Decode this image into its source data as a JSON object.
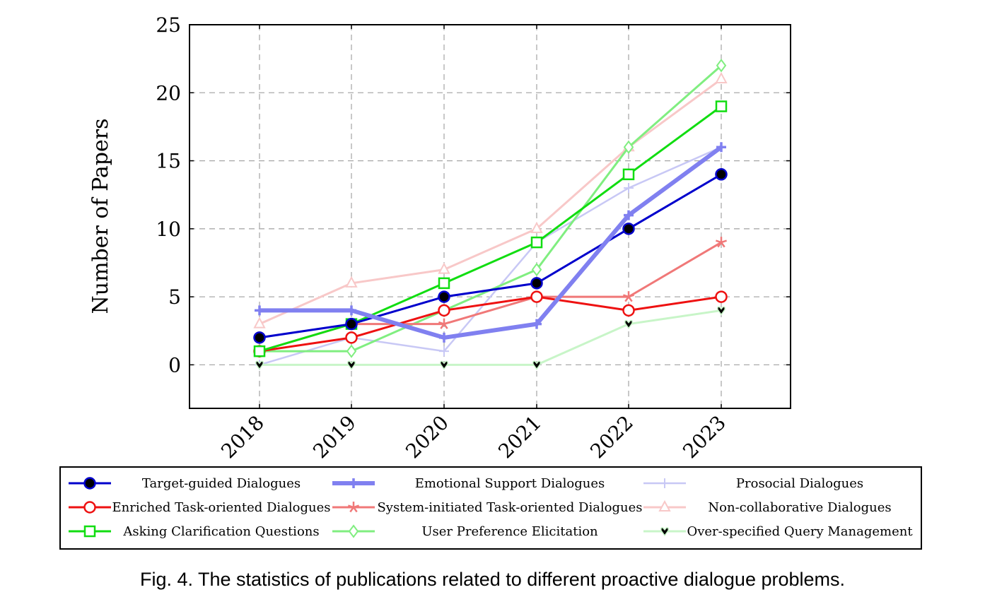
{
  "caption": "Fig. 4.  The statistics of publications related to different proactive dialogue problems.",
  "chart_data": {
    "type": "line",
    "title": "",
    "xlabel": "",
    "ylabel": "Number of Papers",
    "x": [
      "2018",
      "2019",
      "2020",
      "2021",
      "2022",
      "2023"
    ],
    "yticks": [
      "0",
      "5",
      "10",
      "15",
      "20",
      "25"
    ],
    "ylim": [
      -3.2,
      25
    ],
    "grid": true,
    "legend_position": "below",
    "series": [
      {
        "name": "Target-guided Dialogues",
        "values": [
          2,
          3,
          5,
          6,
          10,
          14
        ],
        "color": "#0000cc",
        "marker": "filled-circle",
        "width": 3
      },
      {
        "name": "Emotional Support Dialogues",
        "values": [
          4,
          4,
          2,
          3,
          11,
          16
        ],
        "color": "#8080f0",
        "marker": "plus",
        "width": 6
      },
      {
        "name": "Prosocial Dialogues",
        "values": [
          0,
          2,
          1,
          9,
          13,
          16
        ],
        "color": "#c8c8f5",
        "marker": "plus-thin",
        "width": 2.5
      },
      {
        "name": "Enriched Task-oriented Dialogues",
        "values": [
          1,
          2,
          4,
          5,
          4,
          5
        ],
        "color": "#ee1111",
        "marker": "open-circle",
        "width": 3
      },
      {
        "name": "System-initiated Task-oriented Dialogues",
        "values": [
          1,
          3,
          3,
          5,
          5,
          9
        ],
        "color": "#f07878",
        "marker": "star",
        "width": 3
      },
      {
        "name": "Non-collaborative Dialogues",
        "values": [
          3,
          6,
          7,
          10,
          16,
          21
        ],
        "color": "#f8c8c8",
        "marker": "triangle",
        "width": 3
      },
      {
        "name": "Asking Clarification Questions",
        "values": [
          1,
          3,
          6,
          9,
          14,
          19
        ],
        "color": "#11dd11",
        "marker": "square",
        "width": 3
      },
      {
        "name": "User Preference Elicitation",
        "values": [
          1,
          1,
          4,
          7,
          16,
          22
        ],
        "color": "#80ee80",
        "marker": "diamond",
        "width": 3
      },
      {
        "name": "Over-specified Query Management",
        "values": [
          0,
          0,
          0,
          0,
          3,
          4
        ],
        "color": "#c8f5c8",
        "marker": "heart",
        "width": 3
      }
    ]
  }
}
